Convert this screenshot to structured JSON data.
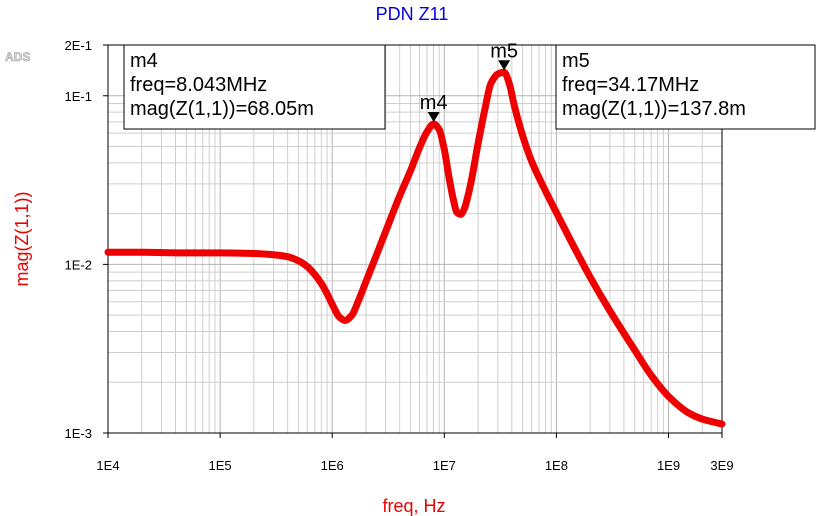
{
  "chart_data": {
    "type": "line",
    "title": "PDN Z11",
    "watermark": "ADS",
    "xlabel": "freq, Hz",
    "ylabel": "mag(Z(1,1))",
    "x_scale": "log",
    "y_scale": "log",
    "xlim": [
      10000,
      3000000000
    ],
    "ylim": [
      0.001,
      0.2
    ],
    "grid": true,
    "x_ticks": [
      {
        "value": 10000,
        "label": "1E4"
      },
      {
        "value": 100000,
        "label": "1E5"
      },
      {
        "value": 1000000,
        "label": "1E6"
      },
      {
        "value": 10000000,
        "label": "1E7"
      },
      {
        "value": 100000000,
        "label": "1E8"
      },
      {
        "value": 1000000000,
        "label": "1E9"
      },
      {
        "value": 3000000000,
        "label": "3E9"
      }
    ],
    "y_ticks": [
      {
        "value": 0.001,
        "label": "1E-3"
      },
      {
        "value": 0.01,
        "label": "1E-2"
      },
      {
        "value": 0.1,
        "label": "1E-1"
      },
      {
        "value": 0.2,
        "label": "2E-1"
      }
    ],
    "colors": {
      "series": "#ee0000",
      "title": "#0000e0",
      "axis_label": "#ee0000"
    },
    "series": [
      {
        "x": [
          10000,
          20000,
          50000,
          100000,
          200000,
          300000,
          400000,
          500000,
          600000,
          700000,
          800000,
          900000,
          1000000,
          1150000,
          1300000,
          1500000,
          1700000,
          2000000,
          2500000,
          3000000,
          4000000,
          5000000,
          6000000,
          7000000,
          8043000,
          9000000,
          10000000,
          11000000,
          12000000,
          13000000,
          14000000,
          15000000,
          17000000,
          20000000,
          23000000,
          26000000,
          30000000,
          34170000,
          38000000,
          42000000,
          50000000,
          60000000,
          80000000,
          100000000,
          150000000,
          200000000,
          300000000,
          500000000,
          700000000,
          1000000000,
          1500000000,
          2000000000,
          3000000000
        ],
        "values": [
          0.0118,
          0.0118,
          0.0117,
          0.0117,
          0.0116,
          0.0114,
          0.0111,
          0.0105,
          0.0097,
          0.0087,
          0.0077,
          0.0067,
          0.0058,
          0.0049,
          0.00465,
          0.005,
          0.006,
          0.0079,
          0.0115,
          0.0157,
          0.0255,
          0.036,
          0.049,
          0.061,
          0.06805,
          0.063,
          0.048,
          0.033,
          0.0245,
          0.0203,
          0.0198,
          0.0212,
          0.029,
          0.052,
          0.083,
          0.118,
          0.1345,
          0.1378,
          0.118,
          0.088,
          0.058,
          0.041,
          0.0272,
          0.0203,
          0.012,
          0.0084,
          0.0053,
          0.0031,
          0.0022,
          0.00165,
          0.00132,
          0.00121,
          0.00113
        ]
      }
    ],
    "markers": [
      {
        "name": "m4",
        "x": 8043000,
        "y": 0.06805,
        "readout": [
          "m4",
          "freq=8.043MHz",
          "mag(Z(1,1))=68.05m"
        ]
      },
      {
        "name": "m5",
        "x": 34170000,
        "y": 0.1378,
        "readout": [
          "m5",
          "freq=34.17MHz",
          "mag(Z(1,1))=137.8m"
        ]
      }
    ]
  }
}
